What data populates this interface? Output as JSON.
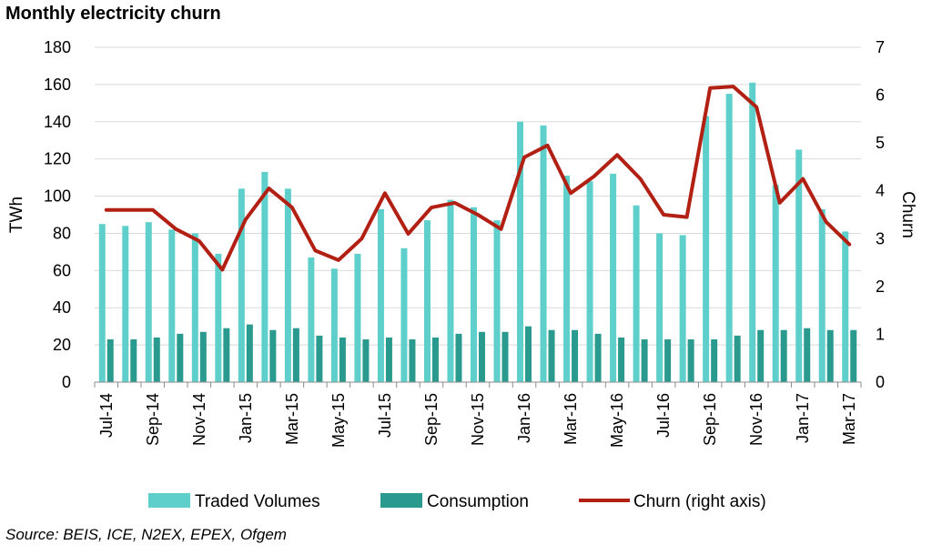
{
  "title": "Monthly electricity churn",
  "source": "Source: BEIS, ICE, N2EX, EPEX, Ofgem",
  "chart_data": {
    "type": "bar",
    "categories": [
      "Jul-14",
      "Aug-14",
      "Sep-14",
      "Oct-14",
      "Nov-14",
      "Dec-14",
      "Jan-15",
      "Feb-15",
      "Mar-15",
      "Apr-15",
      "May-15",
      "Jun-15",
      "Jul-15",
      "Aug-15",
      "Sep-15",
      "Oct-15",
      "Nov-15",
      "Dec-15",
      "Jan-16",
      "Feb-16",
      "Mar-16",
      "Apr-16",
      "May-16",
      "Jun-16",
      "Jul-16",
      "Aug-16",
      "Sep-16",
      "Oct-16",
      "Nov-16",
      "Dec-16",
      "Jan-17",
      "Feb-17",
      "Mar-17"
    ],
    "x_tick_labels": [
      "Jul-14",
      "Sep-14",
      "Nov-14",
      "Jan-15",
      "Mar-15",
      "May-15",
      "Jul-15",
      "Sep-15",
      "Nov-15",
      "Jan-16",
      "Mar-16",
      "May-16",
      "Jul-16",
      "Sep-16",
      "Nov-16",
      "Jan-17",
      "Mar-17"
    ],
    "series": [
      {
        "name": "Traded Volumes",
        "type": "bar",
        "axis": "left",
        "color": "#5ecfca",
        "values": [
          85,
          84,
          86,
          82,
          80,
          69,
          104,
          113,
          104,
          67,
          61,
          69,
          93,
          72,
          87,
          98,
          94,
          87,
          140,
          138,
          111,
          108,
          112,
          95,
          80,
          79,
          143,
          155,
          161,
          106,
          125,
          93,
          81
        ]
      },
      {
        "name": "Consumption",
        "type": "bar",
        "axis": "left",
        "color": "#2a9a8f",
        "values": [
          23,
          23,
          24,
          26,
          27,
          29,
          31,
          28,
          29,
          25,
          24,
          23,
          24,
          23,
          24,
          26,
          27,
          27,
          30,
          28,
          28,
          26,
          24,
          23,
          23,
          23,
          23,
          25,
          28,
          28,
          29,
          28,
          28
        ]
      },
      {
        "name": "Churn (right axis)",
        "type": "line",
        "axis": "right",
        "color": "#b22014",
        "values": [
          3.6,
          3.6,
          3.6,
          3.2,
          2.95,
          2.35,
          3.4,
          4.05,
          3.65,
          2.75,
          2.55,
          3.0,
          3.95,
          3.1,
          3.65,
          3.75,
          3.5,
          3.2,
          4.7,
          4.95,
          3.95,
          4.3,
          4.75,
          4.25,
          3.5,
          3.45,
          6.15,
          6.18,
          5.75,
          3.75,
          4.25,
          3.35,
          2.88
        ]
      }
    ],
    "ylabel": "TWh",
    "y2label": "Churn",
    "ylim": [
      0,
      180
    ],
    "y2lim": [
      0,
      7
    ],
    "yticks": [
      "0",
      "20",
      "40",
      "60",
      "80",
      "100",
      "120",
      "140",
      "160",
      "180"
    ],
    "y2ticks": [
      "0",
      "1",
      "2",
      "3",
      "4",
      "5",
      "6",
      "7"
    ],
    "grid": true,
    "legend": [
      "Traded Volumes",
      "Consumption",
      "Churn (right axis)"
    ],
    "legend_position": "bottom"
  }
}
